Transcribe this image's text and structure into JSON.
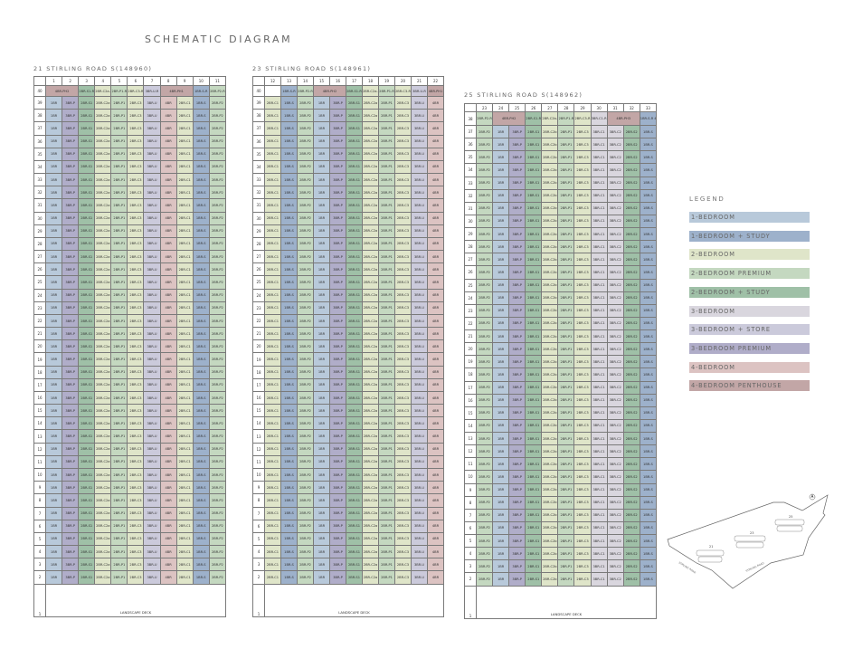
{
  "title": "SCHEMATIC DIAGRAM",
  "colors": {
    "1br": "#b8c9da",
    "1s": "#9db1cb",
    "2br": "#dfe5c9",
    "2p": "#c4d8c0",
    "2s": "#9fc0a7",
    "3br": "#d9d6de",
    "3store": "#cbcadb",
    "3p": "#b0adc9",
    "4br": "#dcc3c2",
    "4ph": "#c2a6a6"
  },
  "legend": {
    "title": "LEGEND",
    "items": [
      {
        "label": "1-BEDROOM",
        "type": "1br"
      },
      {
        "label": "1-BEDROOM + STUDY",
        "type": "1s"
      },
      {
        "label": "2-BEDROOM",
        "type": "2br"
      },
      {
        "label": "2-BEDROOM PREMIUM",
        "type": "2p"
      },
      {
        "label": "2-BEDROOM + STUDY",
        "type": "2s"
      },
      {
        "label": "3-BEDROOM",
        "type": "3br"
      },
      {
        "label": "3-BEDROOM + STORE",
        "type": "3store"
      },
      {
        "label": "3-BEDROOM PREMIUM",
        "type": "3p"
      },
      {
        "label": "4-BEDROOM",
        "type": "4br"
      },
      {
        "label": "4-BEDROOM PENTHOUSE",
        "type": "4ph"
      }
    ]
  },
  "towers": [
    {
      "title": "21 STIRLING ROAD S(148960)",
      "columns": [
        {
          "unit": "1",
          "label": "1BR",
          "type": "1br"
        },
        {
          "unit": "2",
          "label": "3BR-P",
          "type": "3p"
        },
        {
          "unit": "3",
          "label": "2BR-S1",
          "type": "2s"
        },
        {
          "unit": "4",
          "label": "2BR-C2a",
          "type": "2br"
        },
        {
          "unit": "5",
          "label": "2BR-P1",
          "type": "2p"
        },
        {
          "unit": "6",
          "label": "2BR-C3",
          "type": "2br"
        },
        {
          "unit": "7",
          "label": "3BR-U",
          "type": "3store"
        },
        {
          "unit": "8",
          "label": "4BR",
          "type": "4br"
        },
        {
          "unit": "9",
          "label": "2BR-C1",
          "type": "2br"
        },
        {
          "unit": "10",
          "label": "1BR-S",
          "type": "1s"
        },
        {
          "unit": "11",
          "label": "2BR-P2",
          "type": "2p"
        }
      ],
      "top_floor": {
        "floor": "40",
        "cells": [
          {
            "label": "4BR-PH2",
            "span": 2,
            "type": "4ph"
          },
          {
            "label": "2BR-S1-R",
            "span": 1,
            "type": "2s"
          },
          {
            "label": "2BR-C2a-R",
            "span": 1,
            "type": "2br"
          },
          {
            "label": "2BR-P1-R",
            "span": 1,
            "type": "2p"
          },
          {
            "label": "2BR-C3-R",
            "span": 1,
            "type": "2br"
          },
          {
            "label": "3BR-U-R",
            "span": 1,
            "type": "3store"
          },
          {
            "label": "4BR-PH1",
            "span": 2,
            "type": "4ph"
          },
          {
            "label": "1BR-S-R",
            "span": 1,
            "type": "1s"
          },
          {
            "label": "2BR-P2-R",
            "span": 1,
            "type": "2p"
          }
        ]
      },
      "typical_floors": {
        "from": 2,
        "to": 39
      },
      "ground": {
        "floor": "1",
        "label": "LANDSCAPE DECK"
      }
    },
    {
      "title": "23 STIRLING ROAD S(148961)",
      "columns": [
        {
          "unit": "12",
          "label": "2BR-C1",
          "type": "2br"
        },
        {
          "unit": "13",
          "label": "1BR-S",
          "type": "1s"
        },
        {
          "unit": "14",
          "label": "2BR-P2",
          "type": "2p"
        },
        {
          "unit": "15",
          "label": "1BR",
          "type": "1br"
        },
        {
          "unit": "16",
          "label": "3BR-P",
          "type": "3p"
        },
        {
          "unit": "17",
          "label": "2BR-S1",
          "type": "2s"
        },
        {
          "unit": "18",
          "label": "2BR-C2a",
          "type": "2br"
        },
        {
          "unit": "19",
          "label": "2BR-P1",
          "type": "2p"
        },
        {
          "unit": "20",
          "label": "2BR-C3",
          "type": "2br"
        },
        {
          "unit": "21",
          "label": "3BR-U",
          "type": "3store"
        },
        {
          "unit": "22",
          "label": "4BR",
          "type": "4br"
        }
      ],
      "top_floor": {
        "floor": "40",
        "cells": [
          {
            "label": "",
            "span": 1,
            "type": ""
          },
          {
            "label": "1BR-S-R",
            "span": 1,
            "type": "1s"
          },
          {
            "label": "2BR-P2-R",
            "span": 1,
            "type": "2p"
          },
          {
            "label": "4BR-PH2",
            "span": 2,
            "type": "4ph"
          },
          {
            "label": "2BR-S1-R",
            "span": 1,
            "type": "2s"
          },
          {
            "label": "2BR-C2a-R",
            "span": 1,
            "type": "2br"
          },
          {
            "label": "2BR-P1-R",
            "span": 1,
            "type": "2p"
          },
          {
            "label": "2BR-C3-R",
            "span": 1,
            "type": "2br"
          },
          {
            "label": "3BR-U-R",
            "span": 1,
            "type": "3store"
          },
          {
            "label": "4BR-PH1",
            "span": 1,
            "type": "4ph"
          }
        ]
      },
      "typical_floors": {
        "from": 2,
        "to": 39
      },
      "ground": {
        "floor": "1",
        "label": "LANDSCAPE DECK"
      }
    },
    {
      "title": "25 STIRLING ROAD S(148962)",
      "columns": [
        {
          "unit": "23",
          "label": "2BR-P2",
          "type": "2p"
        },
        {
          "unit": "24",
          "label": "1BR",
          "type": "1br"
        },
        {
          "unit": "25",
          "label": "3BR-P",
          "type": "3p"
        },
        {
          "unit": "26",
          "label": "2BR-S1",
          "type": "2s"
        },
        {
          "unit": "27",
          "label": "2BR-C2b",
          "type": "2br"
        },
        {
          "unit": "28",
          "label": "2BR-P1",
          "type": "2p"
        },
        {
          "unit": "29",
          "label": "2BR-C3",
          "type": "2br"
        },
        {
          "unit": "30",
          "label": "3BR-C1",
          "type": "3br"
        },
        {
          "unit": "31",
          "label": "3BR-C2",
          "type": "3br"
        },
        {
          "unit": "32",
          "label": "2BR-S2",
          "type": "2s"
        },
        {
          "unit": "33",
          "label": "1BR-S",
          "type": "1s"
        }
      ],
      "top_floor": {
        "floor": "38",
        "cells": [
          {
            "label": "2BR-P2-R",
            "span": 1,
            "type": "2p"
          },
          {
            "label": "4BR-PH2",
            "span": 2,
            "type": "4ph"
          },
          {
            "label": "2BR-S1-R",
            "span": 1,
            "type": "2s"
          },
          {
            "label": "2BR-C2b-R",
            "span": 1,
            "type": "2br"
          },
          {
            "label": "2BR-P1-R",
            "span": 1,
            "type": "2p"
          },
          {
            "label": "2BR-C3-R",
            "span": 1,
            "type": "2br"
          },
          {
            "label": "3BR-C1-R",
            "span": 1,
            "type": "3br"
          },
          {
            "label": "4BR-PH3",
            "span": 2,
            "type": "4ph"
          },
          {
            "label": "1BR-S-R 4BR-S2",
            "span": 1,
            "type": "1s"
          }
        ]
      },
      "typical_floors": {
        "from": 2,
        "to": 37
      },
      "ground": {
        "floor": "1",
        "label": "LANDSCAPE DECK"
      }
    }
  ],
  "site_map": {
    "blocks": [
      "21",
      "23",
      "25"
    ],
    "road_labels": [
      "STIRLING ROAD",
      "STIRLING ROAD"
    ],
    "north_icon": "north-arrow-icon"
  }
}
